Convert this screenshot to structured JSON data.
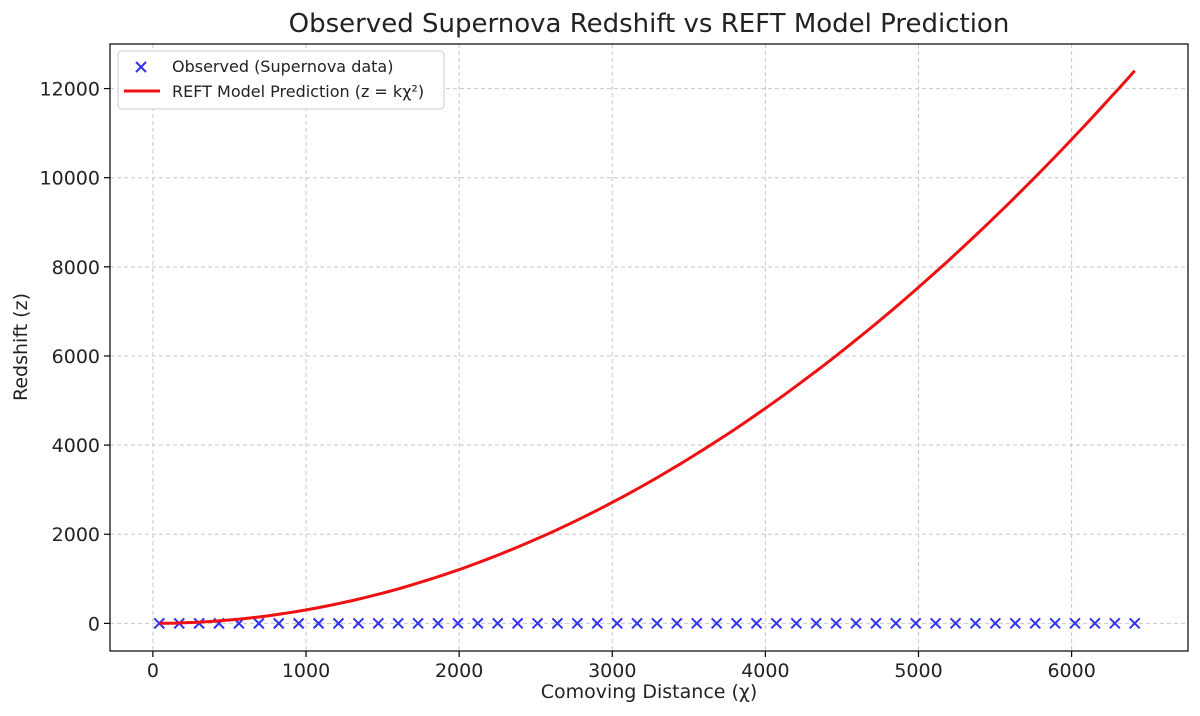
{
  "chart_data": {
    "type": "scatter",
    "title": "Observed Supernova Redshift vs REFT Model Prediction",
    "xlabel": "Comoving Distance (χ)",
    "ylabel": "Redshift (z)",
    "xlim": [
      -280,
      6760
    ],
    "ylim": [
      -620,
      13000
    ],
    "xticks": [
      0,
      1000,
      2000,
      3000,
      4000,
      5000,
      6000
    ],
    "yticks": [
      0,
      2000,
      4000,
      6000,
      8000,
      10000,
      12000
    ],
    "grid": true,
    "legend_position": "top-left",
    "series": [
      {
        "name": "Observed (Supernova data)",
        "kind": "scatter",
        "marker": "x",
        "color": "#3333ee",
        "x": [
          42,
          172,
          302,
          432,
          562,
          692,
          822,
          952,
          1082,
          1212,
          1342,
          1472,
          1602,
          1732,
          1862,
          1992,
          2122,
          2252,
          2382,
          2512,
          2642,
          2772,
          2902,
          3032,
          3162,
          3292,
          3422,
          3552,
          3682,
          3812,
          3942,
          4072,
          4202,
          4332,
          4462,
          4592,
          4722,
          4852,
          4982,
          5112,
          5242,
          5372,
          5502,
          5632,
          5762,
          5892,
          6022,
          6152,
          6282,
          6412
        ],
        "y": [
          0.01,
          0.04,
          0.07,
          0.1,
          0.13,
          0.16,
          0.19,
          0.22,
          0.25,
          0.28,
          0.31,
          0.34,
          0.37,
          0.4,
          0.43,
          0.46,
          0.49,
          0.52,
          0.55,
          0.58,
          0.61,
          0.64,
          0.67,
          0.7,
          0.73,
          0.76,
          0.79,
          0.82,
          0.85,
          0.88,
          0.91,
          0.94,
          0.97,
          1.0,
          1.03,
          1.06,
          1.09,
          1.12,
          1.15,
          1.18,
          1.21,
          1.24,
          1.27,
          1.3,
          1.33,
          1.36,
          1.39,
          1.42,
          1.45,
          1.48
        ]
      },
      {
        "name": "REFT Model Prediction (z = kχ²)",
        "kind": "line",
        "color": "#ee1111",
        "x": [
          42,
          600,
          1000,
          1500,
          2000,
          2500,
          3000,
          3500,
          4000,
          4500,
          5000,
          5500,
          6000,
          6412
        ],
        "y": [
          0.5,
          105,
          300,
          675,
          1200,
          1875,
          2700,
          3675,
          4800,
          6075,
          7500,
          9075,
          10800,
          12400
        ]
      }
    ]
  }
}
